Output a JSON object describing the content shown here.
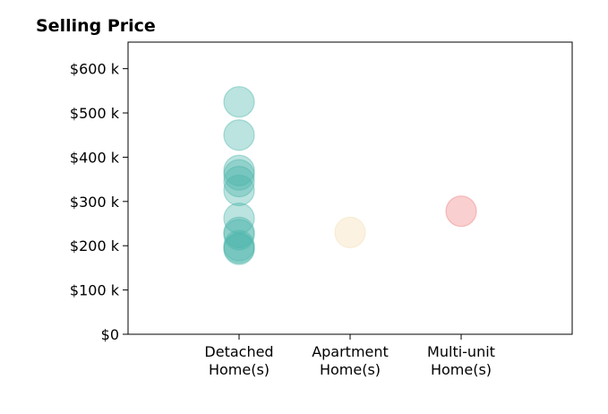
{
  "chart_data": {
    "type": "scatter",
    "title": "Selling Price",
    "xlabel": "",
    "ylabel": "",
    "ylim": [
      0,
      660
    ],
    "y_ticks": [
      {
        "value": 0,
        "label": "$0"
      },
      {
        "value": 100,
        "label": "$100 k"
      },
      {
        "value": 200,
        "label": "$200 k"
      },
      {
        "value": 300,
        "label": "$300 k"
      },
      {
        "value": 400,
        "label": "$400 k"
      },
      {
        "value": 500,
        "label": "$500 k"
      },
      {
        "value": 600,
        "label": "$600 k"
      }
    ],
    "categories": [
      {
        "lines": [
          "Detached",
          "Home(s)"
        ],
        "color": "#4db6ac",
        "values": [
          525,
          450,
          370,
          360,
          345,
          325,
          262,
          230,
          225,
          200,
          195,
          192
        ]
      },
      {
        "lines": [
          "Apartment",
          "Home(s)"
        ],
        "color": "#f5deb3",
        "values": [
          230
        ]
      },
      {
        "lines": [
          "Multi-unit",
          "Home(s)"
        ],
        "color": "#f08080",
        "values": [
          278
        ]
      }
    ],
    "grid": false,
    "legend": "none"
  }
}
